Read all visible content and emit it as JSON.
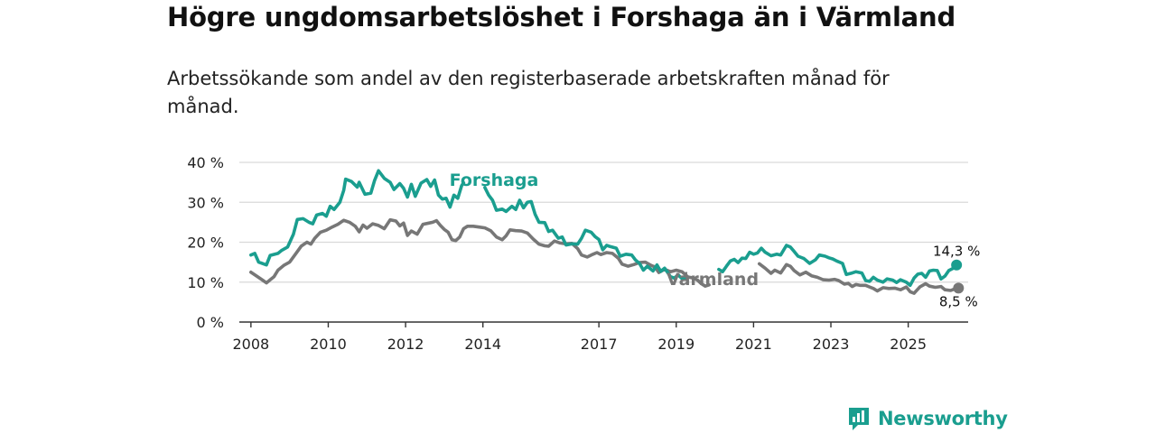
{
  "header": {
    "title": "Högre ungdomsarbetslöshet i Forshaga än i Värmland",
    "subtitle": "Arbetssökande som andel av den registerbaserade arbetskraften månad för månad."
  },
  "brand": {
    "name": "Newsworthy",
    "color": "#1a9e8f"
  },
  "colors": {
    "forshaga": "#1a9e8f",
    "varmland": "#777777",
    "grid": "#d9d9d9",
    "axis": "#333333"
  },
  "chart_data": {
    "type": "line",
    "title": "Högre ungdomsarbetslöshet i Forshaga än i Värmland",
    "xlabel": "",
    "ylabel": "",
    "xlim": [
      2007.7,
      2026.55
    ],
    "ylim": [
      0,
      40
    ],
    "yticks": [
      0,
      10,
      20,
      30,
      40
    ],
    "ytick_labels": [
      "0 %",
      "10 %",
      "20 %",
      "30 %",
      "40 %"
    ],
    "xticks": [
      2008,
      2010,
      2012,
      2014,
      2017,
      2019,
      2021,
      2023,
      2025
    ],
    "xtick_labels": [
      "2008",
      "2010",
      "2012",
      "2014",
      "2017",
      "2019",
      "2021",
      "2023",
      "2025"
    ],
    "grid": true,
    "series": [
      {
        "name": "Forshaga",
        "color": "#1a9e8f",
        "end_label": "14,3 %",
        "points": [
          [
            2008.0,
            16.8
          ],
          [
            2008.1,
            17.2
          ],
          [
            2008.2,
            15.0
          ],
          [
            2008.4,
            14.3
          ],
          [
            2008.5,
            16.7
          ],
          [
            2008.7,
            17.2
          ],
          [
            2008.8,
            18.0
          ],
          [
            2008.95,
            18.8
          ],
          [
            2009.1,
            22.0
          ],
          [
            2009.2,
            25.7
          ],
          [
            2009.35,
            25.9
          ],
          [
            2009.5,
            25.0
          ],
          [
            2009.6,
            24.6
          ],
          [
            2009.7,
            26.8
          ],
          [
            2009.85,
            27.2
          ],
          [
            2009.95,
            26.5
          ],
          [
            2010.05,
            29.0
          ],
          [
            2010.15,
            28.2
          ],
          [
            2010.3,
            30.0
          ],
          [
            2010.4,
            33.0
          ],
          [
            2010.45,
            35.8
          ],
          [
            2010.6,
            35.2
          ],
          [
            2010.75,
            33.8
          ],
          [
            2010.8,
            35.0
          ],
          [
            2010.95,
            32.0
          ],
          [
            2011.1,
            32.3
          ],
          [
            2011.2,
            35.5
          ],
          [
            2011.3,
            37.9
          ],
          [
            2011.45,
            36.0
          ],
          [
            2011.6,
            35.0
          ],
          [
            2011.7,
            33.2
          ],
          [
            2011.85,
            34.7
          ],
          [
            2011.95,
            33.5
          ],
          [
            2012.05,
            31.3
          ],
          [
            2012.15,
            34.5
          ],
          [
            2012.25,
            31.5
          ],
          [
            2012.4,
            34.8
          ],
          [
            2012.55,
            35.7
          ],
          [
            2012.65,
            34.0
          ],
          [
            2012.75,
            35.6
          ],
          [
            2012.85,
            31.8
          ],
          [
            2012.95,
            30.8
          ],
          [
            2013.05,
            31.0
          ],
          [
            2013.15,
            28.8
          ],
          [
            2013.25,
            31.8
          ],
          [
            2013.35,
            31.0
          ],
          [
            2013.45,
            34.2
          ],
          [
            2013.5,
            34.9
          ],
          [
            null,
            null
          ],
          [
            2014.05,
            33.7
          ],
          [
            2014.15,
            31.8
          ],
          [
            2014.25,
            30.5
          ],
          [
            2014.35,
            28.0
          ],
          [
            2014.5,
            28.3
          ],
          [
            2014.6,
            27.7
          ],
          [
            2014.75,
            29.0
          ],
          [
            2014.85,
            28.2
          ],
          [
            2014.95,
            30.5
          ],
          [
            2015.05,
            28.6
          ],
          [
            2015.15,
            30.0
          ],
          [
            2015.25,
            30.2
          ],
          [
            2015.35,
            27.0
          ],
          [
            2015.45,
            25.0
          ],
          [
            2015.6,
            24.9
          ],
          [
            2015.7,
            22.7
          ],
          [
            2015.8,
            23.0
          ],
          [
            2015.95,
            21.0
          ],
          [
            2016.05,
            21.3
          ],
          [
            2016.15,
            19.3
          ],
          [
            2016.3,
            19.6
          ],
          [
            2016.45,
            19.5
          ],
          [
            2016.55,
            21.0
          ],
          [
            2016.65,
            23.0
          ],
          [
            2016.8,
            22.5
          ],
          [
            2016.9,
            21.4
          ],
          [
            2017.0,
            20.7
          ],
          [
            2017.1,
            18.1
          ],
          [
            2017.2,
            19.2
          ],
          [
            2017.3,
            18.9
          ],
          [
            2017.45,
            18.5
          ],
          [
            2017.55,
            16.5
          ],
          [
            2017.7,
            17.0
          ],
          [
            2017.85,
            16.8
          ],
          [
            2017.95,
            15.5
          ],
          [
            2018.05,
            14.7
          ],
          [
            2018.15,
            13.0
          ],
          [
            2018.25,
            14.0
          ],
          [
            2018.4,
            12.8
          ],
          [
            2018.5,
            14.3
          ],
          [
            2018.6,
            12.7
          ],
          [
            2018.7,
            13.5
          ],
          [
            2018.85,
            11.4
          ],
          [
            2018.95,
            11.0
          ],
          [
            2019.05,
            11.8
          ],
          [
            2019.15,
            10.9
          ],
          [
            2019.25,
            10.8
          ],
          [
            null,
            null
          ],
          [
            2020.1,
            13.2
          ],
          [
            2020.2,
            12.6
          ],
          [
            2020.3,
            14.0
          ],
          [
            2020.4,
            15.3
          ],
          [
            2020.5,
            15.7
          ],
          [
            2020.6,
            14.9
          ],
          [
            2020.7,
            16.0
          ],
          [
            2020.8,
            15.9
          ],
          [
            2020.9,
            17.5
          ],
          [
            2021.0,
            17.0
          ],
          [
            2021.1,
            17.3
          ],
          [
            2021.2,
            18.5
          ],
          [
            2021.3,
            17.5
          ],
          [
            2021.45,
            16.6
          ],
          [
            2021.6,
            17.0
          ],
          [
            2021.7,
            16.8
          ],
          [
            2021.85,
            19.2
          ],
          [
            2021.95,
            18.8
          ],
          [
            2022.05,
            17.7
          ],
          [
            2022.15,
            16.5
          ],
          [
            2022.3,
            15.9
          ],
          [
            2022.45,
            14.7
          ],
          [
            2022.6,
            15.6
          ],
          [
            2022.7,
            16.8
          ],
          [
            2022.85,
            16.5
          ],
          [
            2022.95,
            16.1
          ],
          [
            2023.05,
            15.8
          ],
          [
            2023.15,
            15.3
          ],
          [
            2023.3,
            14.7
          ],
          [
            2023.4,
            11.9
          ],
          [
            2023.55,
            12.3
          ],
          [
            2023.65,
            12.6
          ],
          [
            2023.8,
            12.3
          ],
          [
            2023.9,
            10.4
          ],
          [
            2024.0,
            10.2
          ],
          [
            2024.1,
            11.2
          ],
          [
            2024.2,
            10.5
          ],
          [
            2024.35,
            10.0
          ],
          [
            2024.45,
            10.8
          ],
          [
            2024.6,
            10.5
          ],
          [
            2024.7,
            9.9
          ],
          [
            2024.8,
            10.6
          ],
          [
            2024.95,
            10.0
          ],
          [
            2025.05,
            9.2
          ],
          [
            2025.15,
            11.0
          ],
          [
            2025.25,
            12.0
          ],
          [
            2025.35,
            12.2
          ],
          [
            2025.45,
            11.2
          ],
          [
            2025.55,
            12.8
          ],
          [
            2025.65,
            13.0
          ],
          [
            2025.75,
            12.9
          ],
          [
            2025.85,
            10.8
          ],
          [
            2025.95,
            11.5
          ],
          [
            2026.05,
            12.9
          ],
          [
            2026.15,
            13.4
          ],
          [
            2026.25,
            14.3
          ]
        ]
      },
      {
        "name": "Värmland",
        "color": "#777777",
        "end_label": "8,5 %",
        "points": [
          [
            2008.0,
            12.5
          ],
          [
            2008.15,
            11.5
          ],
          [
            2008.3,
            10.5
          ],
          [
            2008.4,
            9.8
          ],
          [
            2008.5,
            10.6
          ],
          [
            2008.6,
            11.4
          ],
          [
            2008.7,
            13.0
          ],
          [
            2008.85,
            14.2
          ],
          [
            2009.0,
            15.0
          ],
          [
            2009.15,
            17.0
          ],
          [
            2009.3,
            19.0
          ],
          [
            2009.45,
            20.0
          ],
          [
            2009.55,
            19.5
          ],
          [
            2009.65,
            21.0
          ],
          [
            2009.8,
            22.5
          ],
          [
            2009.95,
            23.0
          ],
          [
            2010.1,
            23.8
          ],
          [
            2010.25,
            24.5
          ],
          [
            2010.4,
            25.5
          ],
          [
            2010.55,
            25.0
          ],
          [
            2010.7,
            24.0
          ],
          [
            2010.8,
            22.6
          ],
          [
            2010.9,
            24.3
          ],
          [
            2011.0,
            23.5
          ],
          [
            2011.15,
            24.6
          ],
          [
            2011.3,
            24.2
          ],
          [
            2011.45,
            23.4
          ],
          [
            2011.6,
            25.6
          ],
          [
            2011.75,
            25.3
          ],
          [
            2011.85,
            24.1
          ],
          [
            2011.95,
            24.8
          ],
          [
            2012.05,
            21.7
          ],
          [
            2012.15,
            22.8
          ],
          [
            2012.3,
            22.0
          ],
          [
            2012.45,
            24.5
          ],
          [
            2012.6,
            24.8
          ],
          [
            2012.7,
            25.0
          ],
          [
            2012.8,
            25.4
          ],
          [
            2012.9,
            24.2
          ],
          [
            2013.0,
            23.2
          ],
          [
            2013.1,
            22.5
          ],
          [
            2013.2,
            20.6
          ],
          [
            2013.3,
            20.4
          ],
          [
            2013.4,
            21.3
          ],
          [
            2013.5,
            23.4
          ],
          [
            2013.6,
            24.0
          ],
          [
            2013.75,
            24.0
          ],
          [
            2013.9,
            23.8
          ],
          [
            2014.05,
            23.6
          ],
          [
            2014.2,
            22.9
          ],
          [
            2014.35,
            21.3
          ],
          [
            2014.5,
            20.6
          ],
          [
            2014.6,
            21.6
          ],
          [
            2014.7,
            23.1
          ],
          [
            2014.85,
            22.9
          ],
          [
            2015.0,
            22.8
          ],
          [
            2015.15,
            22.3
          ],
          [
            2015.3,
            20.8
          ],
          [
            2015.45,
            19.5
          ],
          [
            2015.6,
            19.1
          ],
          [
            2015.7,
            19.0
          ],
          [
            2015.85,
            20.3
          ],
          [
            2016.0,
            19.8
          ],
          [
            2016.15,
            19.6
          ],
          [
            2016.3,
            19.7
          ],
          [
            2016.45,
            18.4
          ],
          [
            2016.55,
            16.8
          ],
          [
            2016.7,
            16.3
          ],
          [
            2016.85,
            17.0
          ],
          [
            2016.95,
            17.4
          ],
          [
            2017.05,
            16.9
          ],
          [
            2017.2,
            17.4
          ],
          [
            2017.35,
            17.2
          ],
          [
            2017.5,
            16.0
          ],
          [
            2017.6,
            14.5
          ],
          [
            2017.75,
            14.0
          ],
          [
            2017.9,
            14.4
          ],
          [
            2018.05,
            14.9
          ],
          [
            2018.2,
            15.0
          ],
          [
            2018.35,
            14.2
          ],
          [
            2018.45,
            13.8
          ],
          [
            2018.55,
            12.4
          ],
          [
            2018.7,
            13.2
          ],
          [
            2018.85,
            12.6
          ],
          [
            2019.0,
            13.0
          ],
          [
            2019.15,
            12.6
          ],
          [
            2019.3,
            11.3
          ],
          [
            2019.45,
            11.0
          ],
          [
            2019.55,
            10.5
          ],
          [
            2019.65,
            9.6
          ],
          [
            2019.75,
            9.0
          ],
          [
            2019.85,
            9.3
          ],
          [
            null,
            null
          ],
          [
            2021.15,
            14.6
          ],
          [
            2021.3,
            13.5
          ],
          [
            2021.45,
            12.2
          ],
          [
            2021.55,
            13.0
          ],
          [
            2021.7,
            12.3
          ],
          [
            2021.85,
            14.4
          ],
          [
            2021.95,
            14.0
          ],
          [
            2022.05,
            12.9
          ],
          [
            2022.2,
            11.8
          ],
          [
            2022.35,
            12.5
          ],
          [
            2022.5,
            11.6
          ],
          [
            2022.65,
            11.2
          ],
          [
            2022.8,
            10.6
          ],
          [
            2022.95,
            10.5
          ],
          [
            2023.1,
            10.7
          ],
          [
            2023.2,
            10.4
          ],
          [
            2023.35,
            9.5
          ],
          [
            2023.45,
            9.7
          ],
          [
            2023.55,
            8.9
          ],
          [
            2023.65,
            9.4
          ],
          [
            2023.75,
            9.2
          ],
          [
            2023.9,
            9.2
          ],
          [
            2024.0,
            8.8
          ],
          [
            2024.1,
            8.4
          ],
          [
            2024.2,
            7.8
          ],
          [
            2024.35,
            8.6
          ],
          [
            2024.5,
            8.4
          ],
          [
            2024.65,
            8.5
          ],
          [
            2024.8,
            8.1
          ],
          [
            2024.95,
            8.8
          ],
          [
            2025.05,
            7.6
          ],
          [
            2025.15,
            7.2
          ],
          [
            2025.3,
            8.8
          ],
          [
            2025.45,
            9.6
          ],
          [
            2025.55,
            9.0
          ],
          [
            2025.7,
            8.7
          ],
          [
            2025.85,
            8.9
          ],
          [
            2025.95,
            8.1
          ],
          [
            2026.1,
            7.9
          ],
          [
            2026.2,
            8.3
          ],
          [
            2026.3,
            8.5
          ]
        ]
      }
    ]
  }
}
